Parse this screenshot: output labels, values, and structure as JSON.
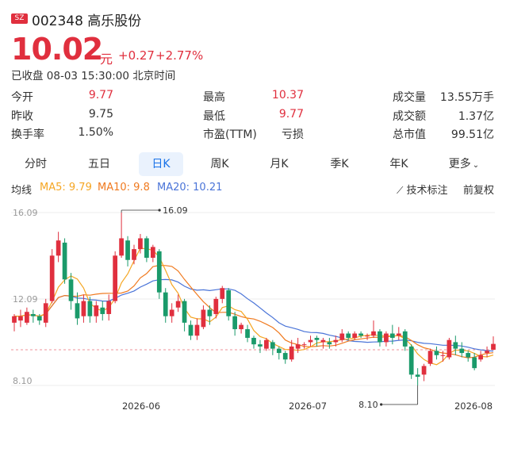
{
  "header": {
    "market_badge": "SZ",
    "code_name": "002348 高乐股份",
    "price": "10.02",
    "price_unit": "元",
    "change": "+0.27",
    "change_pct": "+2.77%",
    "status": "已收盘 08-03 15:30:00 北京时间"
  },
  "stats": {
    "col1": [
      {
        "label": "今开",
        "value": "9.77",
        "color": "#e02f3e"
      },
      {
        "label": "昨收",
        "value": "9.75",
        "color": "#333333"
      },
      {
        "label": "换手率",
        "value": "1.50%",
        "color": "#333333"
      }
    ],
    "col2": [
      {
        "label": "最高",
        "value": "10.37",
        "color": "#e02f3e"
      },
      {
        "label": "最低",
        "value": "9.77",
        "color": "#e02f3e"
      },
      {
        "label": "市盈(TTM)",
        "value": "亏损",
        "color": "#333333"
      }
    ],
    "col3": [
      {
        "label": "成交量",
        "value": "13.55万手",
        "color": "#333333"
      },
      {
        "label": "成交额",
        "value": "1.37亿",
        "color": "#333333"
      },
      {
        "label": "总市值",
        "value": "99.51亿",
        "color": "#333333"
      }
    ]
  },
  "tabs": [
    {
      "label": "分时"
    },
    {
      "label": "五日"
    },
    {
      "label": "日K",
      "active": true
    },
    {
      "label": "周K"
    },
    {
      "label": "月K"
    },
    {
      "label": "季K"
    },
    {
      "label": "年K"
    },
    {
      "label": "更多"
    }
  ],
  "indicators": {
    "label": "均线",
    "ma5": "MA5: 9.79",
    "ma10": "MA10: 9.8",
    "ma20": "MA20: 10.21",
    "ma5_color": "#f5a623",
    "ma10_color": "#f07a1f",
    "ma20_color": "#4a74d8"
  },
  "tools": {
    "tech_label": "技术标注",
    "adjust_label": "前复权"
  },
  "chart_data": {
    "type": "candlestick",
    "y_tick_labels": [
      "16.09",
      "12.09",
      "8.10"
    ],
    "ylim": [
      8.1,
      16.09
    ],
    "x_tick_labels": [
      "2026-06",
      "2026-07",
      "2026-08"
    ],
    "reference_price": 9.75,
    "max_annotation": "16.09",
    "min_annotation": "8.10",
    "up_color": "#e02f3e",
    "down_color": "#1a9a6a",
    "candles": [
      [
        11.0,
        11.3,
        10.6,
        11.4
      ],
      [
        11.1,
        11.3,
        10.8,
        11.6
      ],
      [
        11.0,
        11.5,
        10.9,
        11.7
      ],
      [
        11.4,
        11.3,
        11.0,
        11.6
      ],
      [
        11.3,
        11.1,
        10.9,
        11.4
      ],
      [
        11.0,
        11.9,
        10.8,
        12.1
      ],
      [
        12.0,
        14.1,
        11.9,
        14.4
      ],
      [
        14.1,
        14.8,
        13.8,
        15.2
      ],
      [
        14.7,
        13.0,
        12.8,
        14.9
      ],
      [
        13.0,
        12.0,
        11.6,
        13.3
      ],
      [
        11.9,
        11.2,
        10.9,
        12.4
      ],
      [
        11.3,
        12.0,
        11.0,
        12.3
      ],
      [
        12.0,
        11.3,
        11.0,
        12.2
      ],
      [
        11.3,
        11.8,
        11.0,
        12.0
      ],
      [
        11.7,
        11.4,
        11.1,
        12.0
      ],
      [
        11.4,
        12.0,
        11.1,
        12.3
      ],
      [
        12.0,
        14.1,
        11.9,
        14.3
      ],
      [
        14.1,
        14.9,
        14.0,
        16.09
      ],
      [
        14.8,
        13.9,
        13.6,
        15.0
      ],
      [
        13.9,
        14.4,
        13.7,
        14.6
      ],
      [
        14.4,
        14.9,
        14.2,
        15.1
      ],
      [
        14.9,
        14.0,
        13.8,
        15.0
      ],
      [
        14.0,
        14.5,
        13.8,
        14.6
      ],
      [
        14.3,
        12.4,
        12.1,
        14.4
      ],
      [
        12.4,
        11.3,
        11.0,
        12.6
      ],
      [
        11.3,
        11.6,
        11.0,
        11.9
      ],
      [
        11.7,
        12.0,
        11.5,
        12.3
      ],
      [
        12.0,
        11.0,
        10.6,
        12.1
      ],
      [
        10.9,
        10.4,
        10.2,
        11.1
      ],
      [
        10.4,
        10.9,
        10.2,
        11.2
      ],
      [
        10.8,
        11.6,
        10.7,
        11.8
      ],
      [
        11.6,
        11.3,
        10.9,
        11.8
      ],
      [
        11.4,
        12.1,
        11.2,
        12.2
      ],
      [
        12.1,
        12.6,
        11.9,
        12.7
      ],
      [
        12.5,
        11.3,
        11.1,
        12.6
      ],
      [
        11.3,
        10.7,
        10.4,
        11.5
      ],
      [
        10.7,
        10.9,
        10.5,
        11.0
      ],
      [
        10.7,
        10.3,
        10.1,
        10.9
      ],
      [
        10.3,
        10.0,
        9.8,
        10.4
      ],
      [
        10.0,
        9.9,
        9.6,
        10.2
      ],
      [
        9.8,
        10.2,
        9.7,
        10.3
      ],
      [
        10.1,
        9.8,
        9.5,
        10.2
      ],
      [
        9.8,
        9.6,
        9.3,
        9.9
      ],
      [
        9.6,
        9.3,
        9.1,
        9.7
      ],
      [
        9.3,
        9.9,
        9.2,
        10.2
      ],
      [
        9.8,
        10.0,
        9.6,
        10.3
      ],
      [
        10.0,
        10.0,
        9.8,
        10.1
      ],
      [
        10.1,
        10.2,
        9.9,
        10.4
      ],
      [
        10.3,
        10.2,
        9.9,
        10.4
      ],
      [
        10.1,
        10.2,
        9.8,
        10.3
      ],
      [
        10.1,
        10.0,
        9.8,
        10.3
      ],
      [
        10.1,
        10.2,
        9.9,
        10.4
      ],
      [
        10.2,
        10.5,
        10.1,
        10.7
      ],
      [
        10.5,
        10.3,
        10.2,
        10.6
      ],
      [
        10.3,
        10.5,
        10.2,
        10.6
      ],
      [
        10.5,
        10.4,
        10.3,
        10.6
      ],
      [
        10.4,
        10.4,
        10.2,
        10.5
      ],
      [
        10.4,
        10.6,
        10.3,
        11.1
      ],
      [
        10.6,
        10.1,
        9.9,
        10.7
      ],
      [
        10.1,
        10.5,
        9.9,
        10.6
      ],
      [
        10.5,
        10.3,
        10.0,
        10.9
      ],
      [
        10.4,
        10.5,
        10.2,
        10.8
      ],
      [
        10.6,
        9.9,
        9.7,
        10.7
      ],
      [
        9.9,
        8.6,
        8.4,
        10.0
      ],
      [
        8.6,
        8.5,
        8.1,
        8.9
      ],
      [
        8.6,
        9.0,
        8.3,
        9.1
      ],
      [
        9.1,
        9.7,
        9.0,
        9.8
      ],
      [
        9.7,
        9.5,
        9.3,
        9.9
      ],
      [
        9.5,
        9.5,
        9.2,
        9.7
      ],
      [
        9.4,
        10.2,
        9.3,
        10.3
      ],
      [
        10.1,
        9.8,
        9.5,
        10.4
      ],
      [
        9.8,
        9.6,
        9.4,
        10.1
      ],
      [
        9.6,
        9.4,
        9.2,
        9.7
      ],
      [
        9.4,
        8.9,
        8.8,
        9.6
      ],
      [
        9.3,
        9.5,
        9.2,
        9.7
      ],
      [
        9.6,
        9.7,
        9.4,
        9.9
      ],
      [
        9.75,
        10.02,
        9.77,
        10.37
      ]
    ]
  }
}
